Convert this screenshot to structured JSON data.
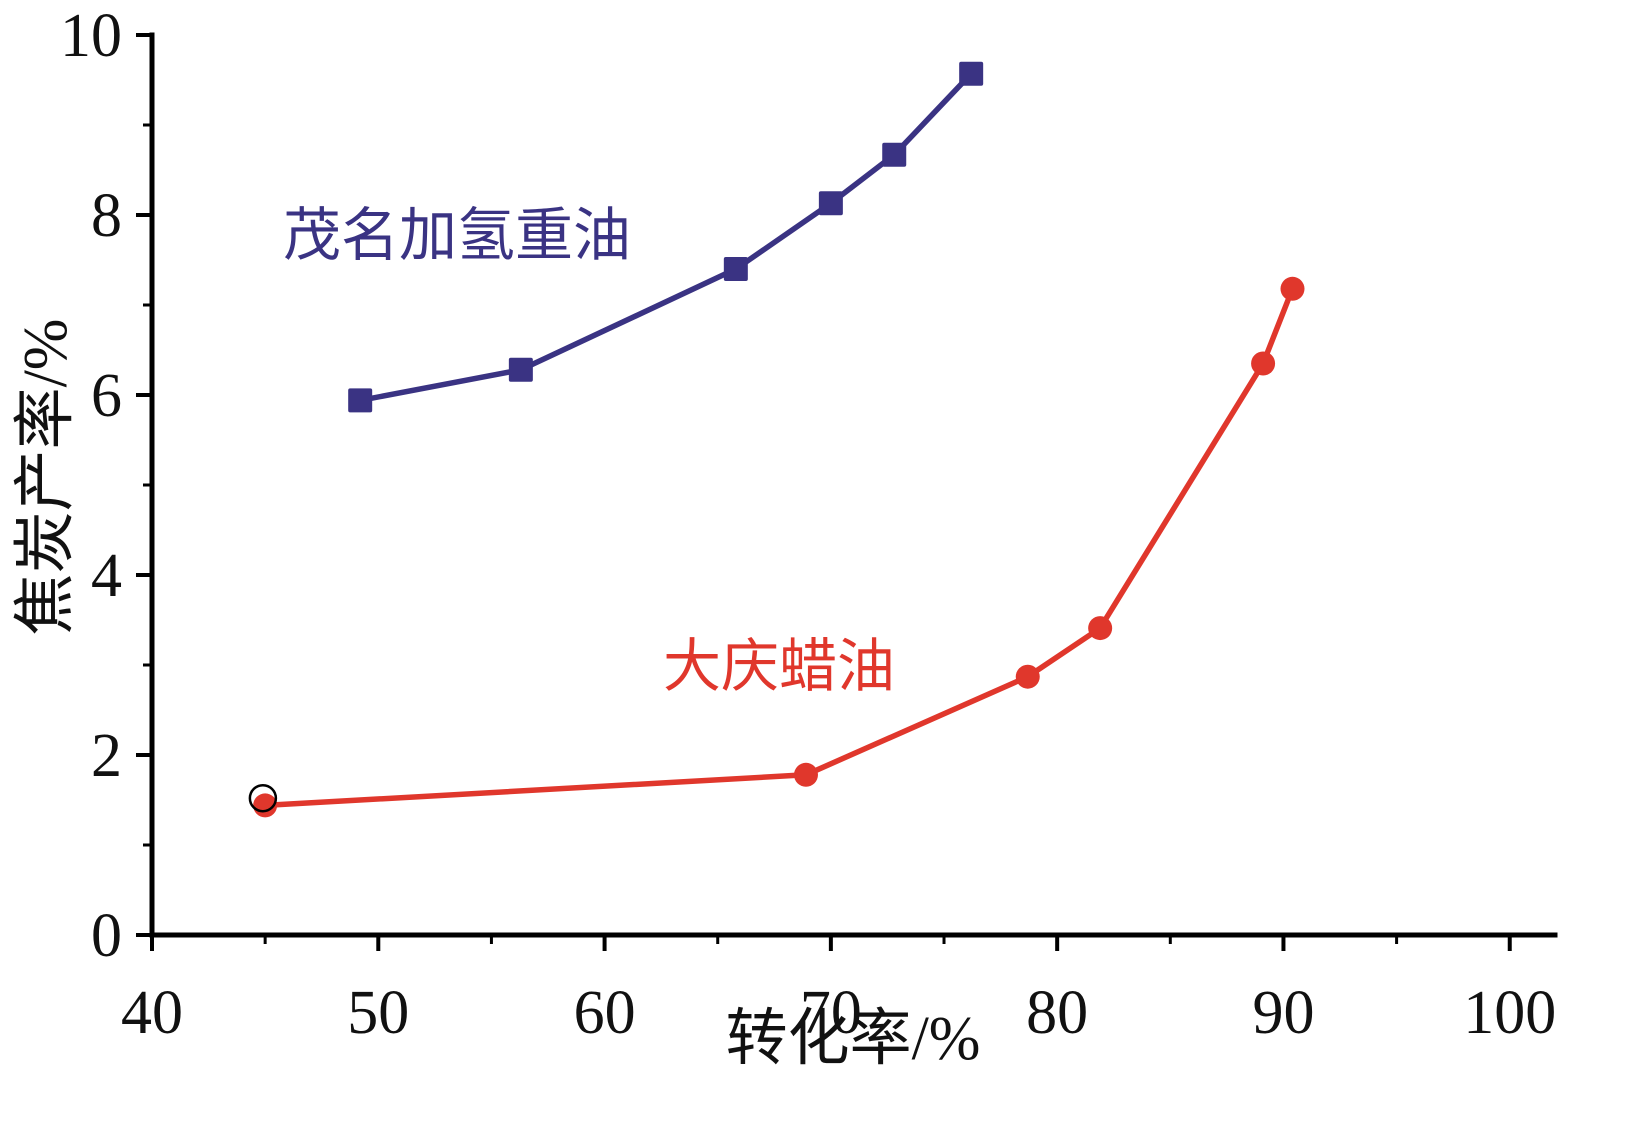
{
  "chart_data": {
    "type": "line",
    "title": "",
    "xlabel": "转化率/%",
    "ylabel": "焦炭产率/%",
    "xlim": [
      40,
      102
    ],
    "ylim": [
      0,
      10
    ],
    "x_ticks": [
      40,
      50,
      60,
      70,
      80,
      90,
      100
    ],
    "x_minor_ticks": [
      45,
      55,
      65,
      75,
      85,
      95
    ],
    "y_ticks": [
      0,
      2,
      4,
      6,
      8,
      10
    ],
    "y_minor_ticks": [
      1,
      3,
      5,
      7,
      9
    ],
    "grid": false,
    "legend_position": "inline-annotations",
    "axis_color": "#000000",
    "series": [
      {
        "name": "茂名加氢重油",
        "color": "#3a3383",
        "marker": "square",
        "x": [
          49.2,
          56.3,
          65.8,
          70.0,
          72.8,
          76.2
        ],
        "y": [
          5.94,
          6.28,
          7.4,
          8.13,
          8.67,
          9.57
        ]
      },
      {
        "name": "大庆蜡油",
        "color": "#e0372c",
        "marker": "circle",
        "x": [
          45.0,
          68.9,
          78.7,
          81.9,
          89.1,
          90.4
        ],
        "y": [
          1.44,
          1.78,
          2.87,
          3.41,
          6.35,
          7.18
        ]
      }
    ],
    "extra_markers": [
      {
        "type": "open-circle",
        "x": 44.9,
        "y": 1.52,
        "color": "#000000"
      }
    ]
  }
}
